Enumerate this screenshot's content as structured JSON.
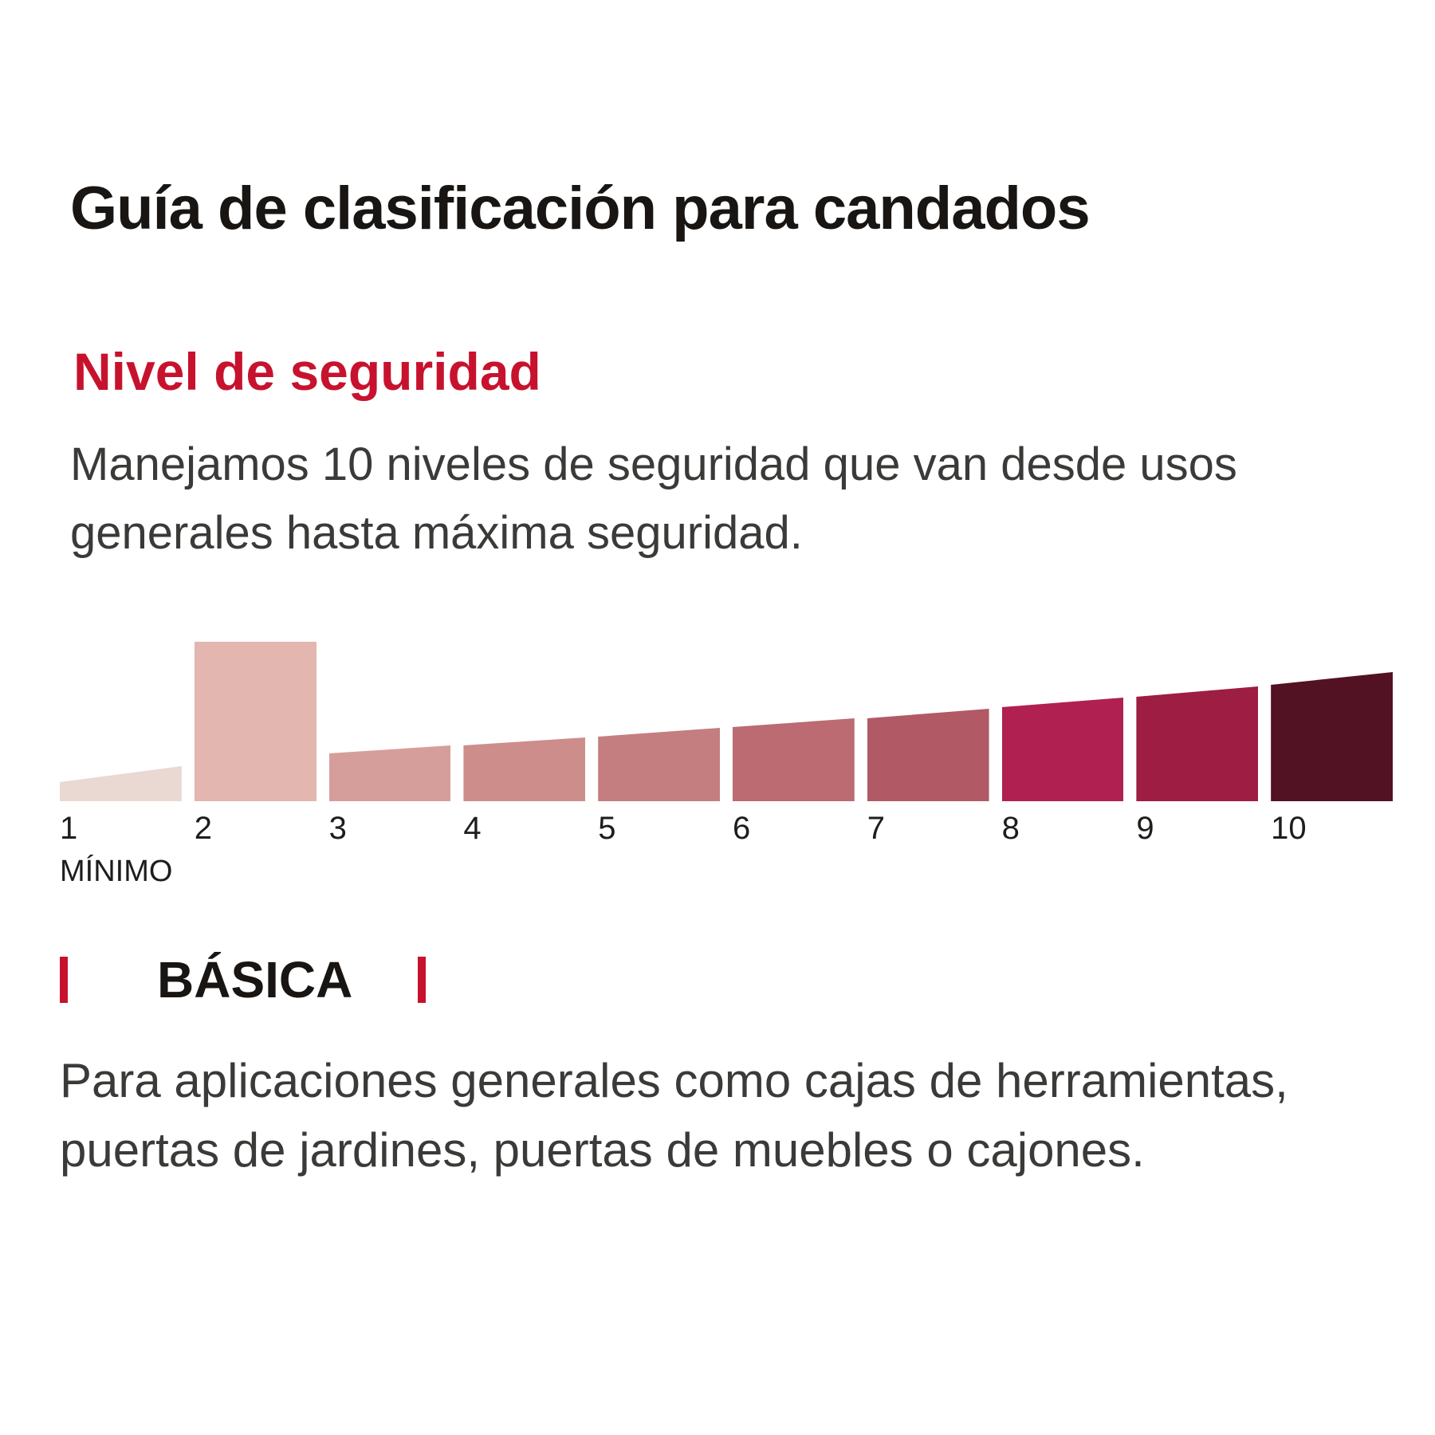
{
  "page": {
    "title": "Guía de clasificación para candados",
    "section_heading": "Nivel de seguridad",
    "description": "Manejamos 10 niveles de seguridad que van desde usos\ngenerales hasta máxima seguridad.",
    "level_label": "BÁSICA",
    "level_description": "Para aplicaciones generales como cajas de herramientas,\npuertas de jardines, puertas de muebles o cajones.",
    "accent_color": "#c7122e"
  },
  "chart_data": {
    "type": "bar",
    "title": "Nivel de seguridad",
    "categories": [
      "1",
      "2",
      "3",
      "4",
      "5",
      "6",
      "7",
      "8",
      "9",
      "10"
    ],
    "values": [
      1,
      2,
      3,
      4,
      5,
      6,
      7,
      8,
      9,
      10
    ],
    "bar_heights_rel": [
      0.22,
      1.0,
      0.35,
      0.4,
      0.46,
      0.52,
      0.58,
      0.65,
      0.72,
      0.81
    ],
    "bar_colors": [
      "#ead8d2",
      "#e3b6b0",
      "#d69e9a",
      "#cd8d8b",
      "#c47e7f",
      "#bb6b71",
      "#b15a66",
      "#b02050",
      "#9e1d42",
      "#531223"
    ],
    "highlighted_level": 2,
    "x_tick_labels": [
      "1",
      "2",
      "3",
      "4",
      "5",
      "6",
      "7",
      "8",
      "9",
      "10"
    ],
    "annotation_min": "MÍNIMO",
    "legend": "none",
    "grid": "off",
    "ylim": [
      0,
      1
    ]
  }
}
